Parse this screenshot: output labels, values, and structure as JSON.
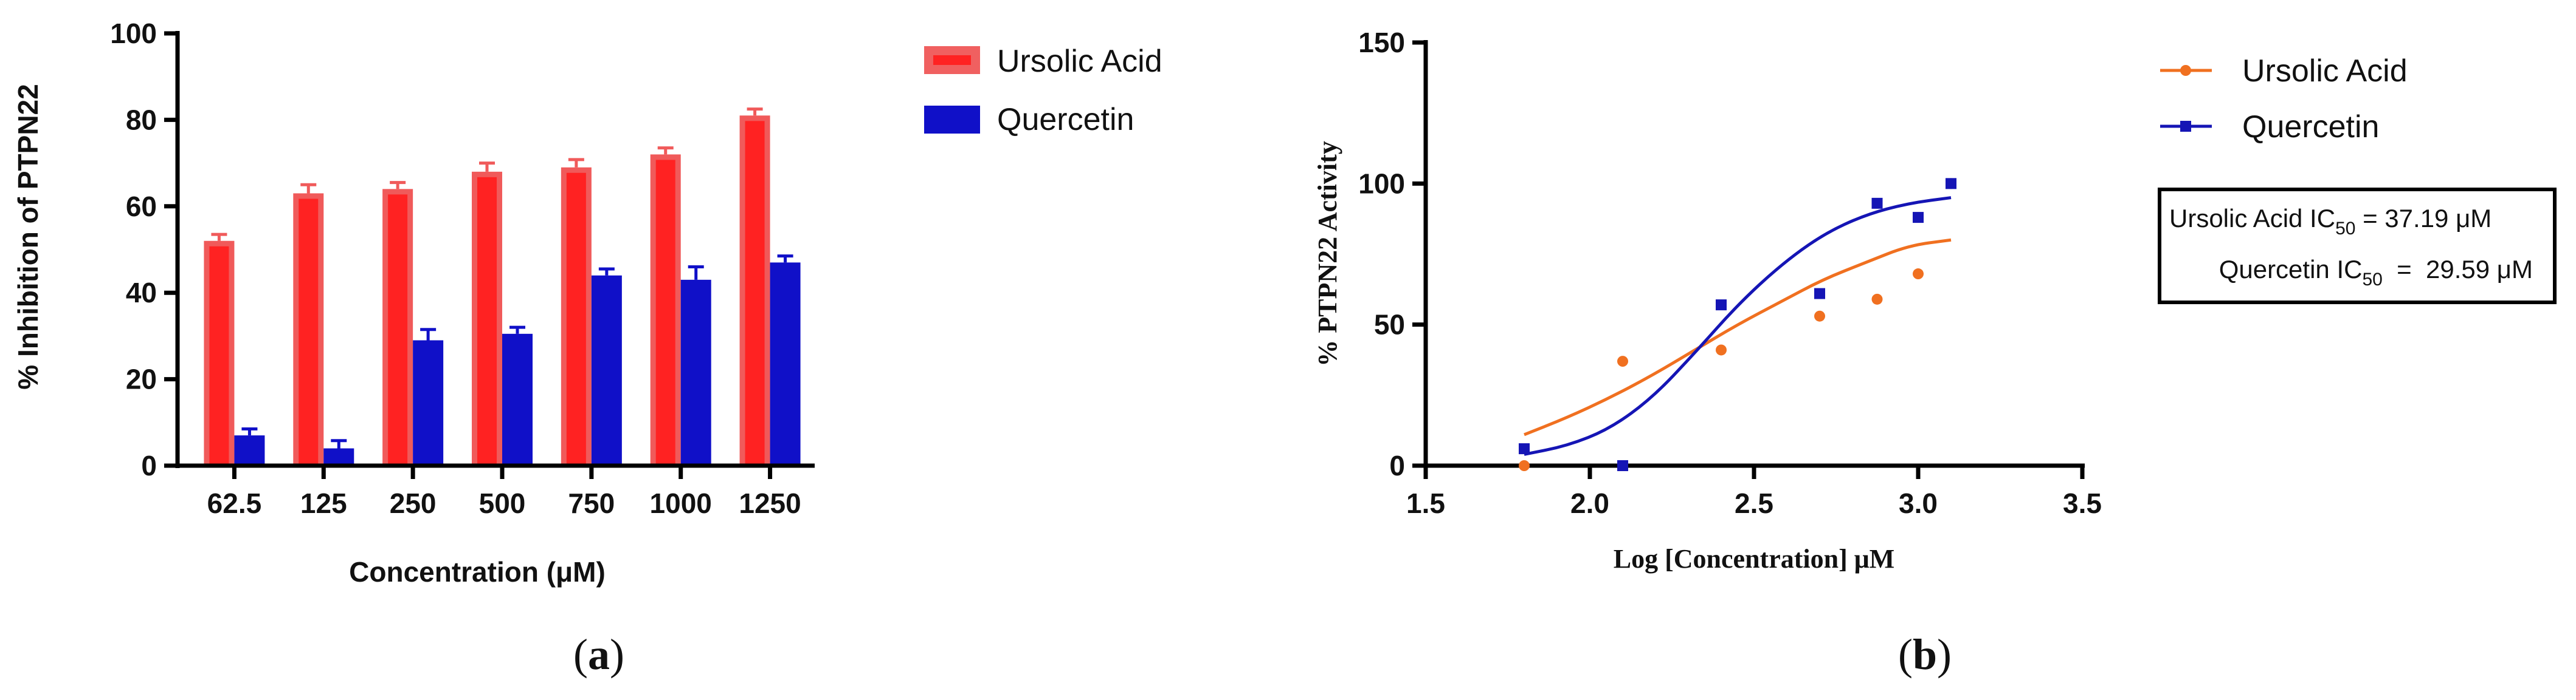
{
  "panels": [
    {
      "label_open": "(",
      "label_letter": "a",
      "label_close": ")"
    },
    {
      "label_open": "(",
      "label_letter": "b",
      "label_close": ")"
    }
  ],
  "chart_data": [
    {
      "type": "bar",
      "title": "",
      "xlabel": "Concentration (μM)",
      "ylabel": "% Inhibition of PTPN22",
      "ylim": [
        0,
        100
      ],
      "yticks": [
        0,
        20,
        40,
        60,
        80,
        100
      ],
      "categories": [
        "62.5",
        "125",
        "250",
        "500",
        "750",
        "1000",
        "1250"
      ],
      "error_bars": true,
      "legend_position": "top-right",
      "series": [
        {
          "name": "Ursolic Acid",
          "color": "#ff2222",
          "values": [
            52,
            63,
            64,
            68,
            69,
            72,
            81
          ],
          "errors": [
            1.5,
            2.0,
            1.5,
            2.0,
            1.8,
            1.5,
            1.5
          ]
        },
        {
          "name": "Quercetin",
          "color": "#1010c8",
          "values": [
            7,
            4,
            29,
            30.5,
            44,
            43,
            47
          ],
          "errors": [
            1.5,
            1.8,
            2.5,
            1.5,
            1.5,
            3.0,
            1.5
          ]
        }
      ]
    },
    {
      "type": "scatter",
      "title": "",
      "xlabel": "Log [Concentration] μM",
      "ylabel": "% PTPN22 Activity",
      "xlim": [
        1.5,
        3.5
      ],
      "ylim": [
        0,
        150
      ],
      "xticks": [
        "1.5",
        "2.0",
        "2.5",
        "3.0",
        "3.5"
      ],
      "yticks": [
        0,
        50,
        100,
        150
      ],
      "fit": "sigmoidal dose-response curve per series",
      "legend_position": "top-right",
      "series": [
        {
          "name": "Ursolic Acid",
          "color": "#f07020",
          "marker": "circle",
          "x": [
            1.8,
            2.1,
            2.4,
            2.7,
            2.875,
            3.0,
            3.1
          ],
          "y": [
            0,
            37,
            41,
            53,
            59,
            68,
            100
          ],
          "curve_y": [
            11,
            17,
            24,
            32,
            41,
            50,
            58,
            66,
            72,
            78,
            80
          ]
        },
        {
          "name": "Quercetin",
          "color": "#1515b5",
          "marker": "square",
          "x": [
            1.8,
            2.1,
            2.4,
            2.7,
            2.875,
            3.0,
            3.1
          ],
          "y": [
            6,
            0,
            57,
            61,
            93,
            88,
            100
          ],
          "curve_y": [
            4,
            7,
            13,
            24,
            40,
            57,
            71,
            82,
            89,
            93,
            95
          ]
        }
      ],
      "ic50_box": {
        "lines": [
          {
            "prefix": "Ursolic Acid IC",
            "sub": "50",
            "suffix": " = 37.19 μM"
          },
          {
            "prefix": "Quercetin IC",
            "sub": "50",
            "suffix": "  =  29.59 μM"
          }
        ]
      }
    }
  ]
}
